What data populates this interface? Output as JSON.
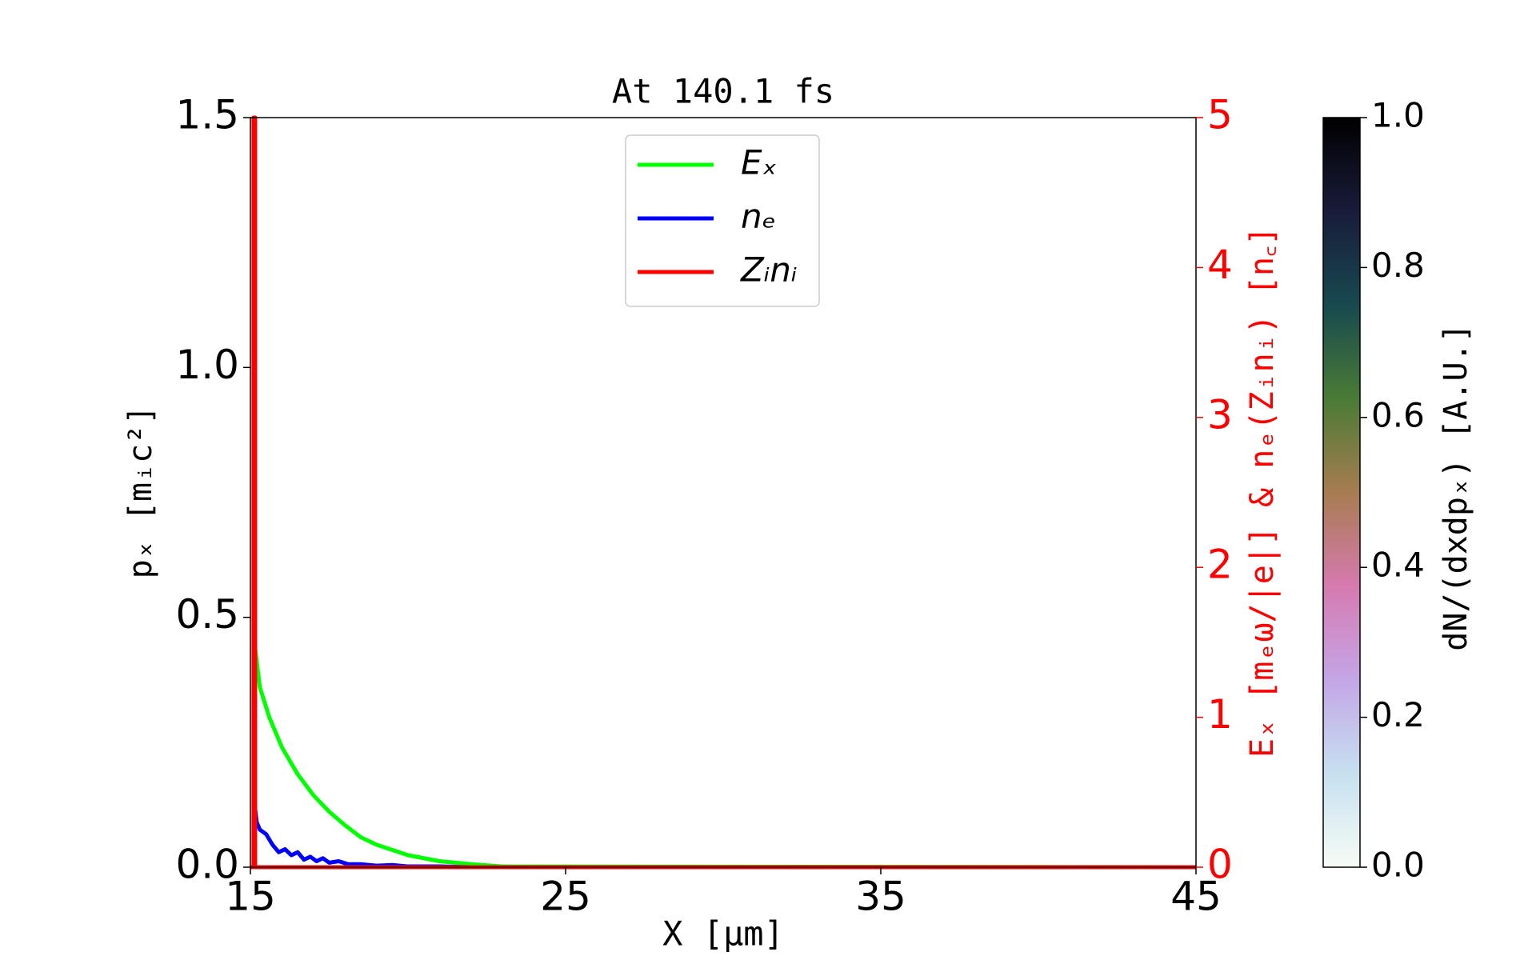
{
  "chart_data": {
    "type": "line",
    "title": "At 140.1 fs",
    "x_label": "X [μm]",
    "y_label": "pₓ [mᵢc²]",
    "y2_label": "Eₓ [mₑω/|e|] & nₑ(Zᵢnᵢ) [n꜀]",
    "xlim": [
      15,
      45
    ],
    "xticks": [
      15,
      25,
      35,
      45
    ],
    "ylim": [
      0,
      1.5
    ],
    "yticks": [
      {
        "value": 0,
        "label": "0.0"
      },
      {
        "value": 0.5,
        "label": "0.5"
      },
      {
        "value": 1,
        "label": "1.0"
      },
      {
        "value": 1.5,
        "label": "1.5"
      }
    ],
    "y2lim": [
      0,
      5
    ],
    "y2ticks": [
      0,
      1,
      2,
      3,
      4,
      5
    ],
    "y2color": "#ff0000",
    "grid": false,
    "legend": "upper center",
    "series": [
      {
        "name": "Eₓ",
        "color": "#00ff00",
        "axis": "y2",
        "x": [
          15.1,
          15.3,
          15.6,
          16,
          16.5,
          17,
          17.5,
          18,
          18.5,
          19,
          20,
          21,
          22,
          23,
          45
        ],
        "values": [
          1.55,
          1.2,
          1.0,
          0.8,
          0.62,
          0.48,
          0.37,
          0.28,
          0.2,
          0.15,
          0.08,
          0.04,
          0.02,
          0.005,
          0
        ]
      },
      {
        "name": "nₑ",
        "color": "#0000ff",
        "axis": "y2",
        "x": [
          15.1,
          15.2,
          15.3,
          15.5,
          15.7,
          15.9,
          16.1,
          16.3,
          16.5,
          16.7,
          16.9,
          17.1,
          17.3,
          17.5,
          17.8,
          18.1,
          18.5,
          19,
          19.5,
          20,
          21,
          22,
          45
        ],
        "values": [
          0.48,
          0.3,
          0.25,
          0.22,
          0.15,
          0.1,
          0.12,
          0.08,
          0.1,
          0.05,
          0.07,
          0.04,
          0.06,
          0.03,
          0.04,
          0.02,
          0.02,
          0.01,
          0.015,
          0.005,
          0.005,
          0,
          0
        ]
      },
      {
        "name": "Zᵢnᵢ",
        "color": "#ff0000",
        "axis": "y2",
        "x": [
          15,
          15.1,
          15.1,
          15.15,
          15.15,
          45
        ],
        "values": [
          0,
          0,
          5,
          5,
          0,
          0
        ]
      }
    ],
    "colorbar": {
      "label": "dN/(dxdpₓ) [A.U.]",
      "lim": [
        0,
        1
      ],
      "ticks": [
        {
          "value": 0,
          "label": "0.0"
        },
        {
          "value": 0.2,
          "label": "0.2"
        },
        {
          "value": 0.4,
          "label": "0.4"
        },
        {
          "value": 0.6,
          "label": "0.6"
        },
        {
          "value": 0.8,
          "label": "0.8"
        },
        {
          "value": 1,
          "label": "1.0"
        }
      ],
      "colors": [
        "#f7fcf5",
        "#c6e0f0",
        "#c4a6e6",
        "#d67ab0",
        "#a77c50",
        "#4a7b36",
        "#17494f",
        "#191c3a",
        "#000000"
      ]
    }
  }
}
